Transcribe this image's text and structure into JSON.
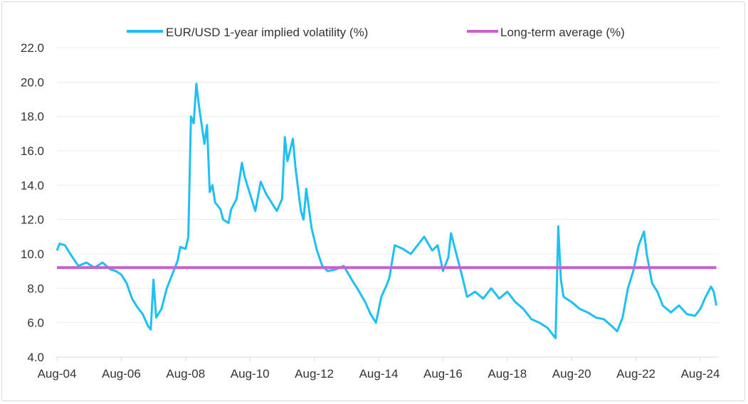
{
  "chart_data": {
    "type": "line",
    "title": "",
    "xlabel": "",
    "ylabel": "",
    "ylim": [
      4.0,
      22.0
    ],
    "yticks": [
      "4.0",
      "6.0",
      "8.0",
      "10.0",
      "12.0",
      "14.0",
      "16.0",
      "18.0",
      "20.0",
      "22.0"
    ],
    "xticks": [
      "Aug-04",
      "Aug-06",
      "Aug-08",
      "Aug-10",
      "Aug-12",
      "Aug-14",
      "Aug-16",
      "Aug-18",
      "Aug-20",
      "Aug-22",
      "Aug-24"
    ],
    "grid": "horizontal",
    "legend_position": "top",
    "series": [
      {
        "name": "EUR/USD 1-year implied volatility (%)",
        "color": "#1ec0f4",
        "points": [
          [
            "2004-08",
            10.2
          ],
          [
            "2004-09",
            10.6
          ],
          [
            "2004-11",
            10.5
          ],
          [
            "2005-01",
            10.0
          ],
          [
            "2005-04",
            9.3
          ],
          [
            "2005-07",
            9.5
          ],
          [
            "2005-10",
            9.2
          ],
          [
            "2006-01",
            9.5
          ],
          [
            "2006-04",
            9.1
          ],
          [
            "2006-06",
            9.0
          ],
          [
            "2006-08",
            8.8
          ],
          [
            "2006-10",
            8.3
          ],
          [
            "2006-12",
            7.4
          ],
          [
            "2007-02",
            6.9
          ],
          [
            "2007-04",
            6.5
          ],
          [
            "2007-06",
            5.8
          ],
          [
            "2007-07",
            5.6
          ],
          [
            "2007-08",
            8.5
          ],
          [
            "2007-09",
            6.3
          ],
          [
            "2007-11",
            6.8
          ],
          [
            "2008-01",
            8.0
          ],
          [
            "2008-03",
            8.8
          ],
          [
            "2008-05",
            9.6
          ],
          [
            "2008-06",
            10.4
          ],
          [
            "2008-08",
            10.3
          ],
          [
            "2008-09",
            11.0
          ],
          [
            "2008-10",
            18.0
          ],
          [
            "2008-11",
            17.6
          ],
          [
            "2008-12",
            19.9
          ],
          [
            "2009-01",
            18.6
          ],
          [
            "2009-02",
            17.5
          ],
          [
            "2009-03",
            16.4
          ],
          [
            "2009-04",
            17.5
          ],
          [
            "2009-05",
            13.6
          ],
          [
            "2009-06",
            14.0
          ],
          [
            "2009-07",
            13.0
          ],
          [
            "2009-09",
            12.6
          ],
          [
            "2009-10",
            12.0
          ],
          [
            "2009-12",
            11.8
          ],
          [
            "2010-01",
            12.6
          ],
          [
            "2010-03",
            13.2
          ],
          [
            "2010-05",
            15.3
          ],
          [
            "2010-06",
            14.5
          ],
          [
            "2010-08",
            13.5
          ],
          [
            "2010-10",
            12.5
          ],
          [
            "2010-12",
            14.2
          ],
          [
            "2011-02",
            13.5
          ],
          [
            "2011-04",
            13.0
          ],
          [
            "2011-06",
            12.5
          ],
          [
            "2011-08",
            13.2
          ],
          [
            "2011-09",
            16.8
          ],
          [
            "2011-10",
            15.4
          ],
          [
            "2011-12",
            16.7
          ],
          [
            "2012-01",
            15.0
          ],
          [
            "2012-03",
            12.5
          ],
          [
            "2012-04",
            12.0
          ],
          [
            "2012-05",
            13.8
          ],
          [
            "2012-07",
            11.5
          ],
          [
            "2012-09",
            10.2
          ],
          [
            "2012-11",
            9.3
          ],
          [
            "2013-01",
            9.0
          ],
          [
            "2013-04",
            9.1
          ],
          [
            "2013-07",
            9.3
          ],
          [
            "2013-10",
            8.5
          ],
          [
            "2013-12",
            8.0
          ],
          [
            "2014-03",
            7.2
          ],
          [
            "2014-05",
            6.5
          ],
          [
            "2014-07",
            6.0
          ],
          [
            "2014-09",
            7.5
          ],
          [
            "2014-11",
            8.2
          ],
          [
            "2014-12",
            8.6
          ],
          [
            "2015-02",
            10.5
          ],
          [
            "2015-05",
            10.3
          ],
          [
            "2015-08",
            10.0
          ],
          [
            "2015-11",
            10.6
          ],
          [
            "2016-01",
            11.0
          ],
          [
            "2016-04",
            10.2
          ],
          [
            "2016-06",
            10.5
          ],
          [
            "2016-08",
            9.0
          ],
          [
            "2016-10",
            9.8
          ],
          [
            "2016-11",
            11.2
          ],
          [
            "2017-01",
            10.0
          ],
          [
            "2017-03",
            8.8
          ],
          [
            "2017-05",
            7.5
          ],
          [
            "2017-08",
            7.8
          ],
          [
            "2017-11",
            7.4
          ],
          [
            "2018-02",
            8.0
          ],
          [
            "2018-05",
            7.4
          ],
          [
            "2018-08",
            7.8
          ],
          [
            "2018-11",
            7.2
          ],
          [
            "2019-02",
            6.8
          ],
          [
            "2019-05",
            6.2
          ],
          [
            "2019-08",
            6.0
          ],
          [
            "2019-11",
            5.7
          ],
          [
            "2020-02",
            5.1
          ],
          [
            "2020-03",
            11.6
          ],
          [
            "2020-04",
            8.5
          ],
          [
            "2020-05",
            7.5
          ],
          [
            "2020-08",
            7.2
          ],
          [
            "2020-11",
            6.8
          ],
          [
            "2021-02",
            6.6
          ],
          [
            "2021-05",
            6.3
          ],
          [
            "2021-08",
            6.2
          ],
          [
            "2021-11",
            5.8
          ],
          [
            "2022-01",
            5.5
          ],
          [
            "2022-03",
            6.3
          ],
          [
            "2022-05",
            8.0
          ],
          [
            "2022-07",
            9.0
          ],
          [
            "2022-09",
            10.5
          ],
          [
            "2022-11",
            11.3
          ],
          [
            "2022-12",
            10.0
          ],
          [
            "2023-02",
            8.3
          ],
          [
            "2023-04",
            7.8
          ],
          [
            "2023-06",
            7.0
          ],
          [
            "2023-09",
            6.6
          ],
          [
            "2023-12",
            7.0
          ],
          [
            "2024-03",
            6.5
          ],
          [
            "2024-06",
            6.4
          ],
          [
            "2024-08",
            6.8
          ],
          [
            "2024-10",
            7.5
          ],
          [
            "2024-12",
            8.1
          ],
          [
            "2025-01",
            7.8
          ],
          [
            "2025-02",
            7.0
          ]
        ]
      },
      {
        "name": "Long-term average (%)",
        "color": "#c95fd1",
        "points": [
          [
            "2004-08",
            9.2
          ],
          [
            "2025-02",
            9.2
          ]
        ]
      }
    ]
  }
}
